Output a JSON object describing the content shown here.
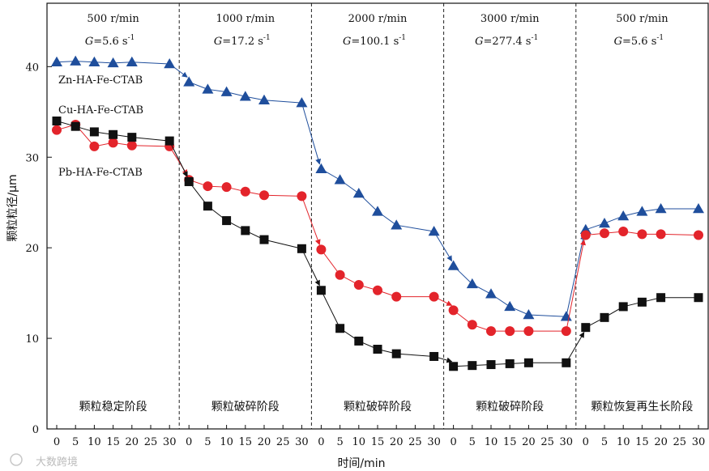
{
  "chart_data": {
    "type": "line",
    "ylabel": "颗粒粒径/μm",
    "xlabel": "时间/min",
    "ylim": [
      0,
      47
    ],
    "yticks": [
      0,
      10,
      20,
      30,
      40
    ],
    "segment_xticks": [
      0,
      5,
      10,
      15,
      20,
      25,
      30
    ],
    "phases": [
      {
        "speed": "500 r/min",
        "g_prefix": "G",
        "g_value": "=5.6 s",
        "g_exp": "-1",
        "name": "颗粒稳定阶段"
      },
      {
        "speed": "1000 r/min",
        "g_prefix": "G",
        "g_value": "=17.2 s",
        "g_exp": "-1",
        "name": "颗粒破碎阶段"
      },
      {
        "speed": "2000 r/min",
        "g_prefix": "G",
        "g_value": "=100.1 s",
        "g_exp": "-1",
        "name": "颗粒破碎阶段"
      },
      {
        "speed": "3000 r/min",
        "g_prefix": "G",
        "g_value": "=277.4 s",
        "g_exp": "-1",
        "name": "颗粒破碎阶段"
      },
      {
        "speed": "500 r/min",
        "g_prefix": "G",
        "g_value": "=5.6 s",
        "g_exp": "-1",
        "name": "颗粒恢复再生长阶段"
      }
    ],
    "series": [
      {
        "name": "Zn-HA-Fe-CTAB",
        "color": "#1f4e9c",
        "marker": "triangle",
        "segments": [
          {
            "x": [
              0,
              5,
              10,
              15,
              20,
              30
            ],
            "y": [
              40.5,
              40.6,
              40.5,
              40.4,
              40.5,
              40.3
            ]
          },
          {
            "x": [
              0,
              5,
              10,
              15,
              20,
              30
            ],
            "y": [
              38.3,
              37.5,
              37.2,
              36.7,
              36.3,
              36.0
            ]
          },
          {
            "x": [
              0,
              5,
              10,
              15,
              20,
              30
            ],
            "y": [
              28.7,
              27.5,
              26.0,
              24.0,
              22.5,
              21.8
            ]
          },
          {
            "x": [
              0,
              5,
              10,
              15,
              20,
              30
            ],
            "y": [
              18.0,
              16.0,
              14.9,
              13.5,
              12.6,
              12.4
            ]
          },
          {
            "x": [
              0,
              5,
              10,
              15,
              20,
              30
            ],
            "y": [
              22.0,
              22.7,
              23.5,
              24.0,
              24.3,
              24.3
            ]
          }
        ]
      },
      {
        "name": "Cu-HA-Fe-CTAB",
        "color": "#e3242b",
        "marker": "circle",
        "segments": [
          {
            "x": [
              0,
              5,
              10,
              15,
              20,
              30
            ],
            "y": [
              33.0,
              33.6,
              31.2,
              31.6,
              31.3,
              31.2
            ]
          },
          {
            "x": [
              0,
              5,
              10,
              15,
              20,
              30
            ],
            "y": [
              27.5,
              26.8,
              26.7,
              26.2,
              25.8,
              25.7
            ]
          },
          {
            "x": [
              0,
              5,
              10,
              15,
              20,
              30
            ],
            "y": [
              19.8,
              17.0,
              15.9,
              15.3,
              14.6,
              14.6
            ]
          },
          {
            "x": [
              0,
              5,
              10,
              15,
              20,
              30
            ],
            "y": [
              13.1,
              11.5,
              10.8,
              10.8,
              10.8,
              10.8
            ]
          },
          {
            "x": [
              0,
              5,
              10,
              15,
              20,
              30
            ],
            "y": [
              21.4,
              21.6,
              21.8,
              21.5,
              21.5,
              21.4
            ]
          }
        ]
      },
      {
        "name": "Pb-HA-Fe-CTAB",
        "color": "#111111",
        "marker": "square",
        "segments": [
          {
            "x": [
              0,
              5,
              10,
              15,
              20,
              30
            ],
            "y": [
              34.0,
              33.4,
              32.8,
              32.5,
              32.2,
              31.8
            ]
          },
          {
            "x": [
              0,
              5,
              10,
              15,
              20,
              30
            ],
            "y": [
              27.3,
              24.6,
              23.0,
              21.9,
              20.9,
              19.9
            ]
          },
          {
            "x": [
              0,
              5,
              10,
              15,
              20,
              30
            ],
            "y": [
              15.3,
              11.1,
              9.7,
              8.8,
              8.3,
              8.0
            ]
          },
          {
            "x": [
              0,
              5,
              10,
              15,
              20,
              30
            ],
            "y": [
              6.9,
              7.0,
              7.1,
              7.2,
              7.3,
              7.3
            ]
          },
          {
            "x": [
              0,
              5,
              10,
              15,
              20,
              30
            ],
            "y": [
              11.2,
              12.3,
              13.5,
              14.0,
              14.5,
              14.5
            ]
          }
        ]
      }
    ]
  },
  "watermark": "大数跨境"
}
